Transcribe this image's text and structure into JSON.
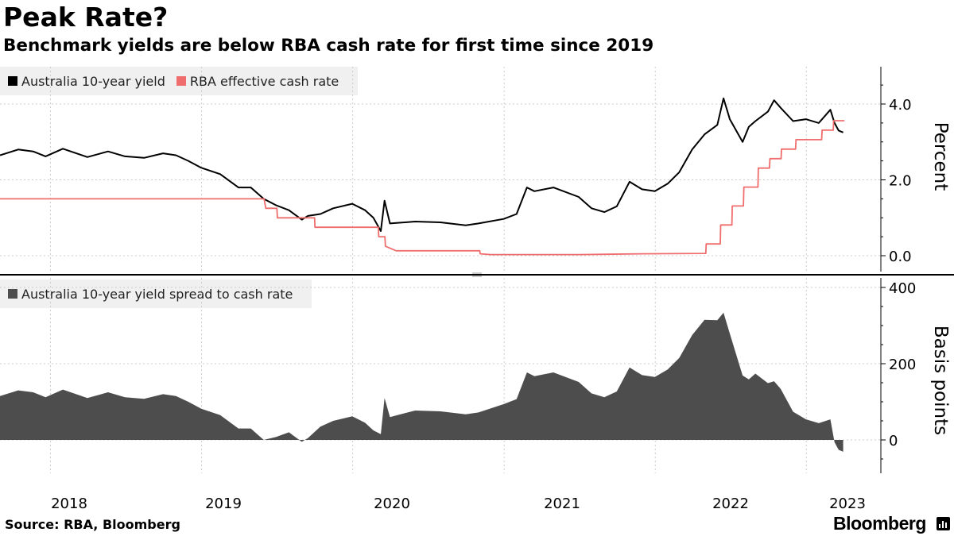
{
  "header": {
    "title": "Peak Rate?",
    "subtitle": "Benchmark yields are below RBA cash rate for first time since 2019"
  },
  "footer": {
    "source": "Source: RBA, Bloomberg",
    "brand": "Bloomberg"
  },
  "colors": {
    "yield": "#000000",
    "cash_rate": "#f06d6d",
    "spread": "#4d4d4d",
    "grid": "#cccccc",
    "legend_bg": "#f0f0f0"
  },
  "chart_data": [
    {
      "type": "line",
      "legend_placement": "top-left",
      "ylabel": "Percent",
      "ylim": [
        -0.3,
        5.0
      ],
      "yticks": [
        0.0,
        2.0,
        4.0
      ],
      "ytick_labels": [
        "0.0",
        "2.0",
        "4.0"
      ],
      "grid": true,
      "x_ticks": [
        "2018",
        "2019",
        "2020",
        "2021",
        "2022",
        "2023"
      ],
      "series": [
        {
          "name": "Australia 10-year yield",
          "color": "#000000",
          "points": [
            [
              "2017-09-01",
              2.65
            ],
            [
              "2017-10-15",
              2.8
            ],
            [
              "2017-11-20",
              2.75
            ],
            [
              "2017-12-20",
              2.62
            ],
            [
              "2018-01-31",
              2.82
            ],
            [
              "2018-03-31",
              2.6
            ],
            [
              "2018-05-20",
              2.75
            ],
            [
              "2018-06-30",
              2.62
            ],
            [
              "2018-08-15",
              2.58
            ],
            [
              "2018-09-30",
              2.7
            ],
            [
              "2018-10-31",
              2.65
            ],
            [
              "2018-11-30",
              2.5
            ],
            [
              "2018-12-31",
              2.32
            ],
            [
              "2019-02-15",
              2.15
            ],
            [
              "2019-03-31",
              1.8
            ],
            [
              "2019-04-30",
              1.8
            ],
            [
              "2019-05-31",
              1.5
            ],
            [
              "2019-06-30",
              1.33
            ],
            [
              "2019-07-31",
              1.2
            ],
            [
              "2019-08-31",
              0.95
            ],
            [
              "2019-09-15",
              1.05
            ],
            [
              "2019-10-15",
              1.1
            ],
            [
              "2019-11-15",
              1.25
            ],
            [
              "2019-12-31",
              1.37
            ],
            [
              "2020-01-31",
              1.2
            ],
            [
              "2020-02-20",
              1.0
            ],
            [
              "2020-03-09",
              0.65
            ],
            [
              "2020-03-18",
              1.45
            ],
            [
              "2020-03-31",
              0.85
            ],
            [
              "2020-05-31",
              0.9
            ],
            [
              "2020-07-31",
              0.88
            ],
            [
              "2020-09-30",
              0.8
            ],
            [
              "2020-10-31",
              0.85
            ],
            [
              "2020-12-31",
              0.97
            ],
            [
              "2021-01-31",
              1.1
            ],
            [
              "2021-02-25",
              1.8
            ],
            [
              "2021-03-15",
              1.7
            ],
            [
              "2021-04-30",
              1.8
            ],
            [
              "2021-06-30",
              1.55
            ],
            [
              "2021-07-31",
              1.25
            ],
            [
              "2021-08-31",
              1.15
            ],
            [
              "2021-09-30",
              1.3
            ],
            [
              "2021-10-31",
              1.95
            ],
            [
              "2021-11-30",
              1.75
            ],
            [
              "2021-12-31",
              1.7
            ],
            [
              "2022-01-31",
              1.9
            ],
            [
              "2022-02-28",
              2.2
            ],
            [
              "2022-03-31",
              2.8
            ],
            [
              "2022-04-30",
              3.2
            ],
            [
              "2022-05-31",
              3.45
            ],
            [
              "2022-06-15",
              4.15
            ],
            [
              "2022-06-30",
              3.6
            ],
            [
              "2022-07-31",
              3.0
            ],
            [
              "2022-08-15",
              3.4
            ],
            [
              "2022-08-31",
              3.55
            ],
            [
              "2022-09-30",
              3.8
            ],
            [
              "2022-10-15",
              4.1
            ],
            [
              "2022-10-31",
              3.9
            ],
            [
              "2022-11-30",
              3.55
            ],
            [
              "2022-12-31",
              3.6
            ],
            [
              "2023-01-31",
              3.5
            ],
            [
              "2023-02-28",
              3.85
            ],
            [
              "2023-03-10",
              3.5
            ],
            [
              "2023-03-20",
              3.3
            ],
            [
              "2023-03-31",
              3.25
            ]
          ]
        },
        {
          "name": "RBA effective cash rate",
          "color": "#f06d6d",
          "points": [
            [
              "2017-09-01",
              1.5
            ],
            [
              "2019-06-01",
              1.5
            ],
            [
              "2019-06-05",
              1.25
            ],
            [
              "2019-07-02",
              1.25
            ],
            [
              "2019-07-03",
              1.0
            ],
            [
              "2019-10-01",
              1.0
            ],
            [
              "2019-10-02",
              0.75
            ],
            [
              "2020-03-03",
              0.75
            ],
            [
              "2020-03-04",
              0.5
            ],
            [
              "2020-03-19",
              0.5
            ],
            [
              "2020-03-20",
              0.25
            ],
            [
              "2020-04-15",
              0.13
            ],
            [
              "2020-11-03",
              0.13
            ],
            [
              "2020-11-04",
              0.05
            ],
            [
              "2020-11-30",
              0.03
            ],
            [
              "2021-07-01",
              0.03
            ],
            [
              "2021-12-01",
              0.05
            ],
            [
              "2022-05-03",
              0.06
            ],
            [
              "2022-05-04",
              0.31
            ],
            [
              "2022-06-07",
              0.31
            ],
            [
              "2022-06-08",
              0.81
            ],
            [
              "2022-07-05",
              0.81
            ],
            [
              "2022-07-06",
              1.31
            ],
            [
              "2022-08-02",
              1.31
            ],
            [
              "2022-08-03",
              1.81
            ],
            [
              "2022-09-06",
              1.81
            ],
            [
              "2022-09-07",
              2.31
            ],
            [
              "2022-10-04",
              2.31
            ],
            [
              "2022-10-05",
              2.56
            ],
            [
              "2022-11-01",
              2.56
            ],
            [
              "2022-11-02",
              2.81
            ],
            [
              "2022-12-06",
              2.81
            ],
            [
              "2022-12-07",
              3.06
            ],
            [
              "2023-02-07",
              3.06
            ],
            [
              "2023-02-08",
              3.31
            ],
            [
              "2023-03-07",
              3.31
            ],
            [
              "2023-03-08",
              3.56
            ],
            [
              "2023-04-03",
              3.56
            ]
          ]
        }
      ]
    },
    {
      "type": "area",
      "legend_placement": "top-left",
      "ylabel": "Basis points",
      "ylim": [
        -80,
        420
      ],
      "yticks": [
        0,
        200,
        400
      ],
      "ytick_labels": [
        "0",
        "200",
        "400"
      ],
      "grid": true,
      "x_ticks": [
        "2018",
        "2019",
        "2020",
        "2021",
        "2022",
        "2023"
      ],
      "series": [
        {
          "name": "Australia 10-year yield spread to cash rate",
          "color": "#4d4d4d",
          "points": [
            [
              "2017-09-01",
              115
            ],
            [
              "2017-10-15",
              130
            ],
            [
              "2017-11-20",
              125
            ],
            [
              "2017-12-20",
              112
            ],
            [
              "2018-01-31",
              132
            ],
            [
              "2018-03-31",
              110
            ],
            [
              "2018-05-20",
              125
            ],
            [
              "2018-06-30",
              112
            ],
            [
              "2018-08-15",
              108
            ],
            [
              "2018-09-30",
              120
            ],
            [
              "2018-10-31",
              115
            ],
            [
              "2018-11-30",
              100
            ],
            [
              "2018-12-31",
              82
            ],
            [
              "2019-02-15",
              65
            ],
            [
              "2019-03-31",
              30
            ],
            [
              "2019-04-30",
              30
            ],
            [
              "2019-05-31",
              0
            ],
            [
              "2019-06-30",
              8
            ],
            [
              "2019-07-31",
              20
            ],
            [
              "2019-08-31",
              -5
            ],
            [
              "2019-09-15",
              5
            ],
            [
              "2019-10-15",
              35
            ],
            [
              "2019-11-15",
              50
            ],
            [
              "2019-12-31",
              62
            ],
            [
              "2020-01-31",
              45
            ],
            [
              "2020-02-20",
              25
            ],
            [
              "2020-03-09",
              15
            ],
            [
              "2020-03-18",
              110
            ],
            [
              "2020-03-31",
              60
            ],
            [
              "2020-05-31",
              77
            ],
            [
              "2020-07-31",
              75
            ],
            [
              "2020-09-30",
              67
            ],
            [
              "2020-10-31",
              72
            ],
            [
              "2020-12-31",
              94
            ],
            [
              "2021-01-31",
              107
            ],
            [
              "2021-02-25",
              177
            ],
            [
              "2021-03-15",
              167
            ],
            [
              "2021-04-30",
              177
            ],
            [
              "2021-06-30",
              152
            ],
            [
              "2021-07-31",
              122
            ],
            [
              "2021-08-31",
              112
            ],
            [
              "2021-09-30",
              127
            ],
            [
              "2021-10-31",
              190
            ],
            [
              "2021-11-30",
              170
            ],
            [
              "2021-12-31",
              165
            ],
            [
              "2022-01-31",
              185
            ],
            [
              "2022-02-28",
              215
            ],
            [
              "2022-03-31",
              275
            ],
            [
              "2022-04-30",
              315
            ],
            [
              "2022-05-31",
              314
            ],
            [
              "2022-06-15",
              334
            ],
            [
              "2022-06-30",
              279
            ],
            [
              "2022-07-31",
              169
            ],
            [
              "2022-08-15",
              159
            ],
            [
              "2022-08-31",
              174
            ],
            [
              "2022-09-30",
              149
            ],
            [
              "2022-10-15",
              154
            ],
            [
              "2022-10-31",
              134
            ],
            [
              "2022-11-30",
              74
            ],
            [
              "2022-12-31",
              54
            ],
            [
              "2023-01-31",
              44
            ],
            [
              "2023-02-28",
              54
            ],
            [
              "2023-03-10",
              -6
            ],
            [
              "2023-03-20",
              -26
            ],
            [
              "2023-03-31",
              -31
            ]
          ]
        }
      ]
    }
  ]
}
